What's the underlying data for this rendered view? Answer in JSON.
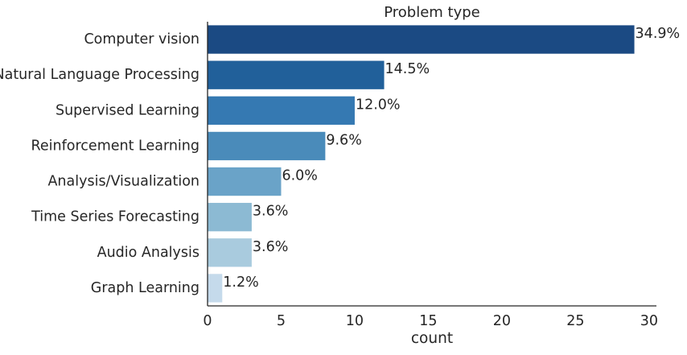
{
  "chart_data": {
    "type": "bar",
    "orientation": "horizontal",
    "title": "Problem type",
    "xlabel": "count",
    "ylabel": "",
    "xlim": [
      0,
      30.5
    ],
    "xticks": [
      0,
      5,
      10,
      15,
      20,
      25,
      30
    ],
    "grid": false,
    "categories": [
      "Computer vision",
      "Natural Language Processing",
      "Supervised Learning",
      "Reinforcement Learning",
      "Analysis/Visualization",
      "Time Series Forecasting",
      "Audio Analysis",
      "Graph Learning"
    ],
    "values": [
      29,
      12,
      10,
      8,
      5,
      3,
      3,
      1
    ],
    "labels": [
      "34.9%",
      "14.5%",
      "12.0%",
      "9.6%",
      "6.0%",
      "3.6%",
      "3.6%",
      "1.2%"
    ],
    "colors": [
      "#1b4a83",
      "#21609a",
      "#3579b2",
      "#4a8bba",
      "#6aa3c8",
      "#8cbad3",
      "#a9cbde",
      "#c5daeb"
    ],
    "axis_color": "#262626"
  }
}
